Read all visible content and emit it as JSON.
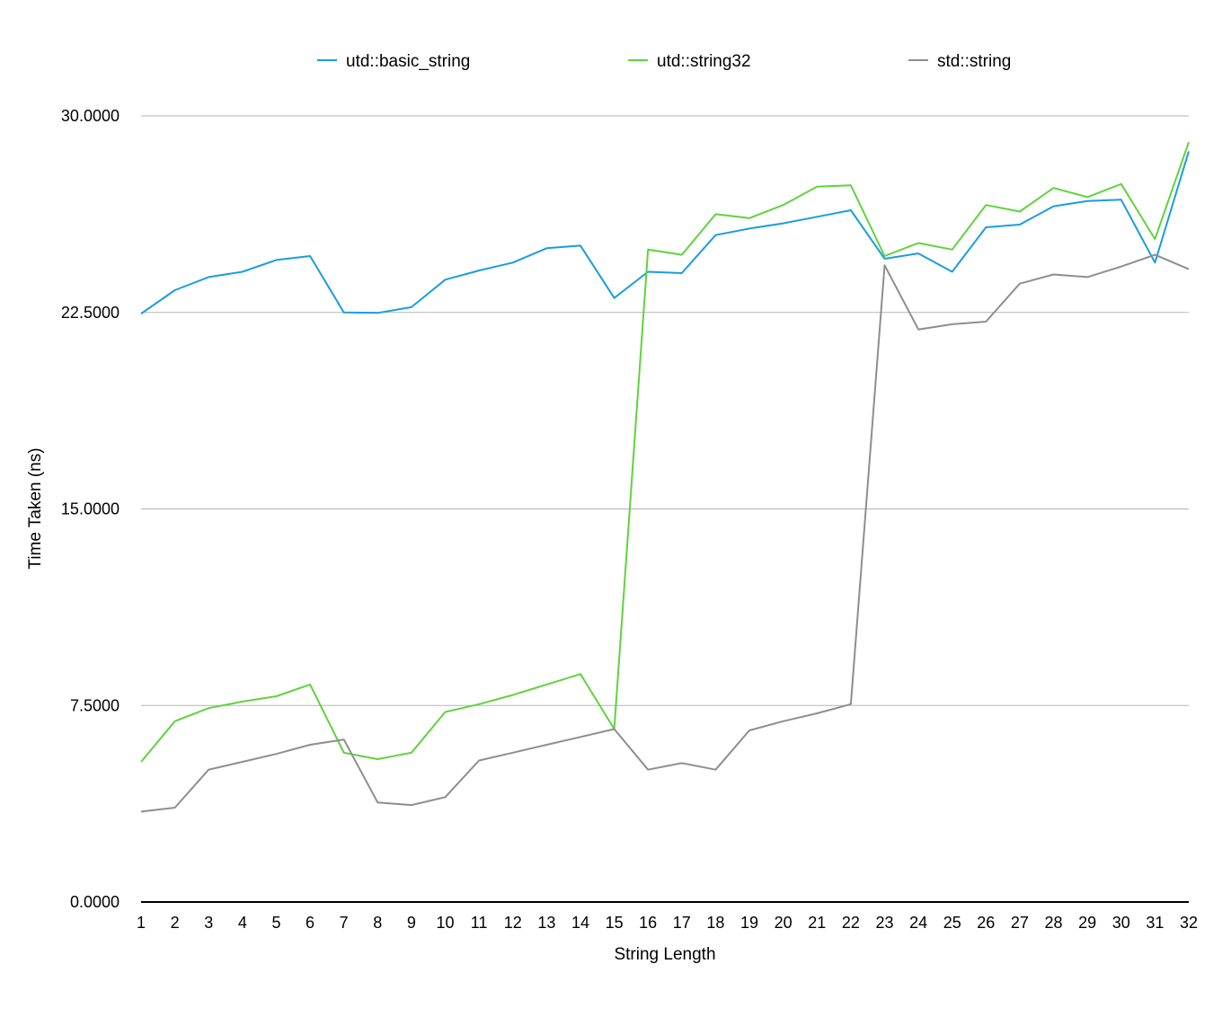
{
  "chart_data": {
    "type": "line",
    "title": "",
    "xlabel": "String Length",
    "ylabel": "Time Taken (ns)",
    "ylim": [
      0,
      30
    ],
    "yticks": [
      "0.0000",
      "7.5000",
      "15.0000",
      "22.5000",
      "30.0000"
    ],
    "grid": true,
    "legend_position": "top",
    "x": [
      1,
      2,
      3,
      4,
      5,
      6,
      7,
      8,
      9,
      10,
      11,
      12,
      13,
      14,
      15,
      16,
      17,
      18,
      19,
      20,
      21,
      22,
      23,
      24,
      25,
      26,
      27,
      28,
      29,
      30,
      31,
      32
    ],
    "series": [
      {
        "name": "utd::basic_string",
        "color": "#1a9de0",
        "values": [
          22.45,
          23.35,
          23.85,
          24.05,
          24.5,
          24.65,
          22.5,
          22.48,
          22.7,
          23.75,
          24.1,
          24.4,
          24.95,
          25.05,
          23.05,
          24.05,
          24.0,
          25.45,
          25.7,
          25.9,
          26.15,
          26.4,
          24.55,
          24.75,
          24.05,
          25.75,
          25.85,
          26.55,
          26.75,
          26.8,
          24.4,
          28.65
        ]
      },
      {
        "name": "utd::string32",
        "color": "#5fd33e",
        "values": [
          5.35,
          6.9,
          7.4,
          7.65,
          7.85,
          8.3,
          5.7,
          5.45,
          5.7,
          7.25,
          7.55,
          7.9,
          8.3,
          8.7,
          6.6,
          24.9,
          24.7,
          26.25,
          26.1,
          26.6,
          27.3,
          27.35,
          24.65,
          25.15,
          24.9,
          26.6,
          26.35,
          27.25,
          26.9,
          27.4,
          25.3,
          29.0
        ]
      },
      {
        "name": "std::string",
        "color": "#8e8e8e",
        "values": [
          3.45,
          3.6,
          5.05,
          5.35,
          5.65,
          6.0,
          6.2,
          3.8,
          3.7,
          4.0,
          5.4,
          5.7,
          6.0,
          6.3,
          6.6,
          5.05,
          5.3,
          5.05,
          6.55,
          6.9,
          7.2,
          7.55,
          24.3,
          21.85,
          22.05,
          22.15,
          23.6,
          23.95,
          23.85,
          24.25,
          24.7,
          24.15
        ]
      }
    ]
  }
}
